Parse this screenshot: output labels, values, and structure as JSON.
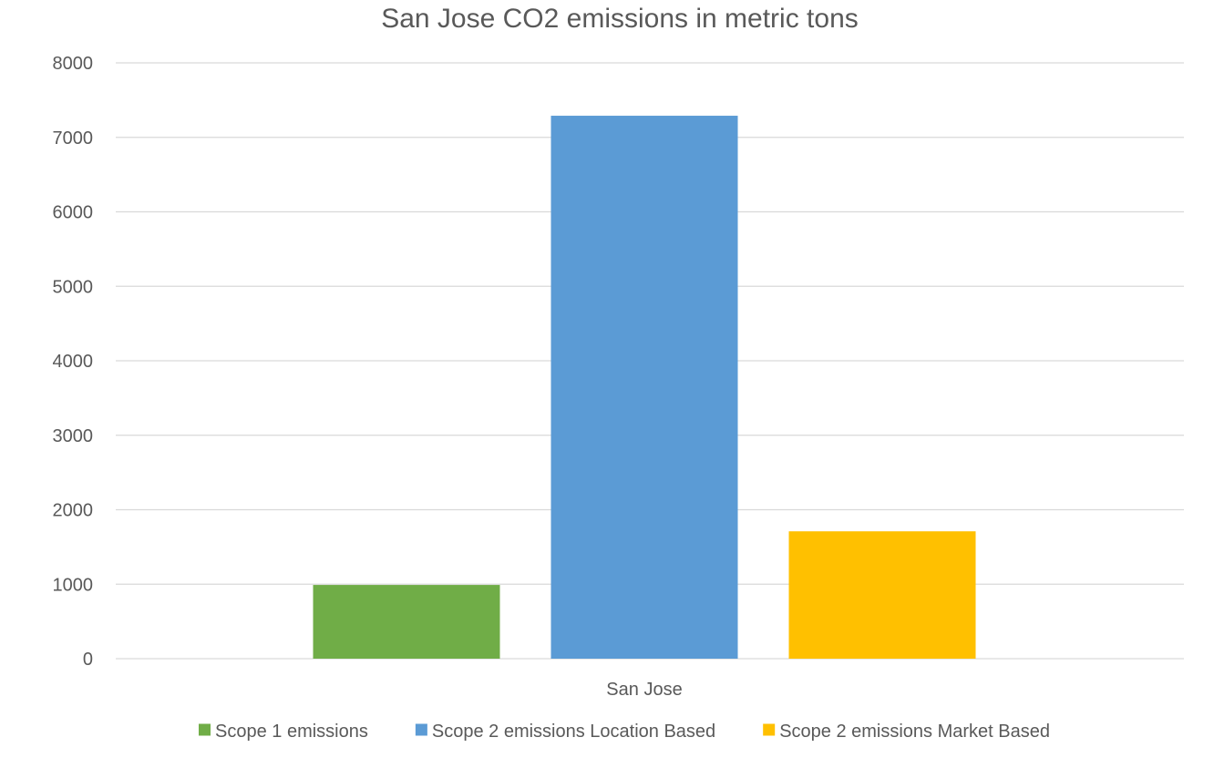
{
  "chart_data": {
    "type": "bar",
    "title": "San Jose CO2 emissions in metric tons",
    "categories": [
      "San Jose"
    ],
    "series": [
      {
        "name": "Scope 1 emissions",
        "values": [
          990
        ],
        "color": "#70ad47"
      },
      {
        "name": "Scope 2 emissions Location Based",
        "values": [
          7290
        ],
        "color": "#5b9bd5"
      },
      {
        "name": "Scope 2 emissions Market Based",
        "values": [
          1710
        ],
        "color": "#ffc000"
      }
    ],
    "xlabel": "",
    "ylabel": "",
    "ylim": [
      0,
      8000
    ],
    "yticks": [
      "0",
      "1000",
      "2000",
      "3000",
      "4000",
      "5000",
      "6000",
      "7000",
      "8000"
    ],
    "grid": true,
    "legend_position": "bottom"
  }
}
